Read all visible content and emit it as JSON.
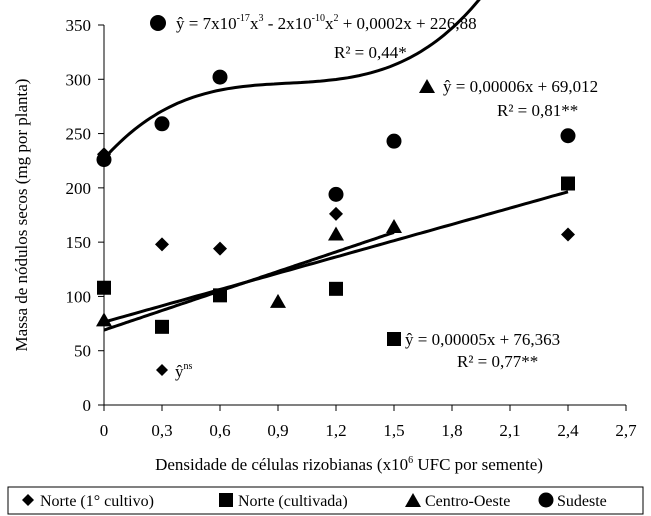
{
  "chart_data": {
    "type": "scatter",
    "xlabel": "Densidade de células rizobianas (x10⁶ UFC por semente)",
    "ylabel": "Massa de nódulos secos (mg por planta)",
    "xlim": [
      0,
      2.7
    ],
    "ylim": [
      0,
      350
    ],
    "x_ticks": [
      "0",
      "0,3",
      "0,6",
      "0,9",
      "1,2",
      "1,5",
      "1,8",
      "2,1",
      "2,4",
      "2,7"
    ],
    "y_ticks": [
      "0",
      "50",
      "100",
      "150",
      "200",
      "250",
      "300",
      "350"
    ],
    "legend_position": "bottom",
    "series": [
      {
        "name": "Norte (1° cultivo)",
        "marker": "diamond",
        "x": [
          0,
          0.3,
          0.6,
          1.2,
          2.4
        ],
        "y": [
          231,
          148,
          144,
          176,
          157
        ],
        "fit_equation": "ŷ",
        "fit_annotation": "ns"
      },
      {
        "name": "Norte (cultivada)",
        "marker": "square",
        "x": [
          0,
          0.3,
          0.6,
          1.2,
          2.4
        ],
        "y": [
          108,
          72,
          101,
          107,
          204
        ],
        "fit_equation": "ŷ = 0,00005x + 76,363",
        "r_squared": "R² = 0,77**",
        "fit": {
          "kind": "linear",
          "slope_per_million": 50,
          "intercept": 76.363
        }
      },
      {
        "name": "Centro-Oeste",
        "marker": "triangle",
        "x": [
          0,
          0.9,
          1.2,
          1.5
        ],
        "y": [
          78,
          95,
          157,
          164
        ],
        "fit_equation": "ŷ = 0,00006x + 69,012",
        "r_squared": "R² = 0,81**",
        "fit": {
          "kind": "linear",
          "slope_per_million": 60,
          "intercept": 69.012
        }
      },
      {
        "name": "Sudeste",
        "marker": "circle",
        "x": [
          0,
          0.3,
          0.6,
          1.2,
          1.5,
          2.4
        ],
        "y": [
          226,
          259,
          302,
          194,
          243,
          248
        ],
        "fit_equation": "ŷ = 7x10⁻¹⁷x³ - 2x10⁻¹⁰x² + 0,0002x + 226,88",
        "r_squared": "R² = 0,44*",
        "fit": {
          "kind": "cubic",
          "a3_per_million": 70,
          "a2_per_million": -200,
          "a1_per_million": 200,
          "a0": 226.88
        }
      }
    ]
  },
  "legend": {
    "items": [
      {
        "label": "Norte (1° cultivo)",
        "marker": "diamond"
      },
      {
        "label": "Norte (cultivada)",
        "marker": "square"
      },
      {
        "label": "Centro-Oeste",
        "marker": "triangle"
      },
      {
        "label": "Sudeste",
        "marker": "circle"
      }
    ]
  },
  "equations": {
    "sudeste_main": "ŷ = 7x10",
    "sudeste_exp1": "-17",
    "sudeste_mid1": "x",
    "sudeste_exp2": "3",
    "sudeste_mid2": " - 2x10",
    "sudeste_exp3": "-10",
    "sudeste_mid3": "x",
    "sudeste_exp4": "2",
    "sudeste_tail": " + 0,0002x + 226,88",
    "sudeste_r2": "R² = 0,44*",
    "co_eq": "ŷ = 0,00006x + 69,012",
    "co_r2": "R² = 0,81**",
    "nc_eq": "ŷ = 0,00005x + 76,363",
    "nc_r2": "R² = 0,77**",
    "n1_eq": "ŷ",
    "n1_sup": "ns"
  },
  "axis": {
    "xlabel_main": "Densidade de células rizobianas (x10",
    "xlabel_sup": "6",
    "xlabel_tail": " UFC por semente)",
    "ylabel": "Massa de nódulos secos (mg por planta)"
  }
}
